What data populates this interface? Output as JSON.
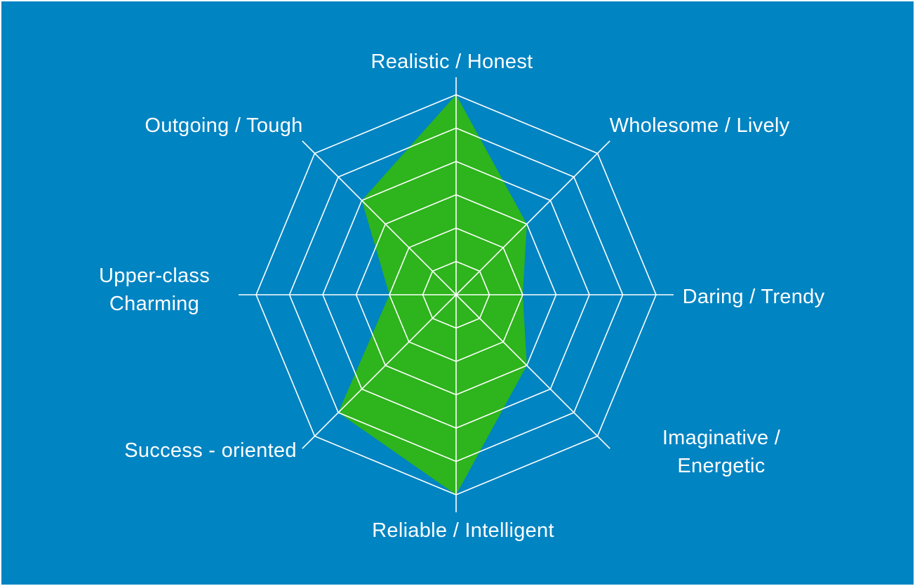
{
  "chart_data": {
    "type": "radar",
    "categories": [
      "Realistic / Honest",
      "Wholesome / Lively",
      "Daring / Trendy",
      "Imaginative / Energetic",
      "Reliable / Intelligent",
      "Success - oriented",
      "Upper-class\nCharming",
      "Outgoing / Tough"
    ],
    "values": [
      6,
      3,
      2,
      3,
      6,
      5,
      2,
      4
    ],
    "max": 6,
    "rings": 6,
    "grid": true,
    "legend": "none",
    "title": "",
    "colors": {
      "background": "#0084c2",
      "fill": "#2eb41c",
      "grid": "#ffffff",
      "label": "#ffffff",
      "frame": "#ffffff"
    }
  }
}
